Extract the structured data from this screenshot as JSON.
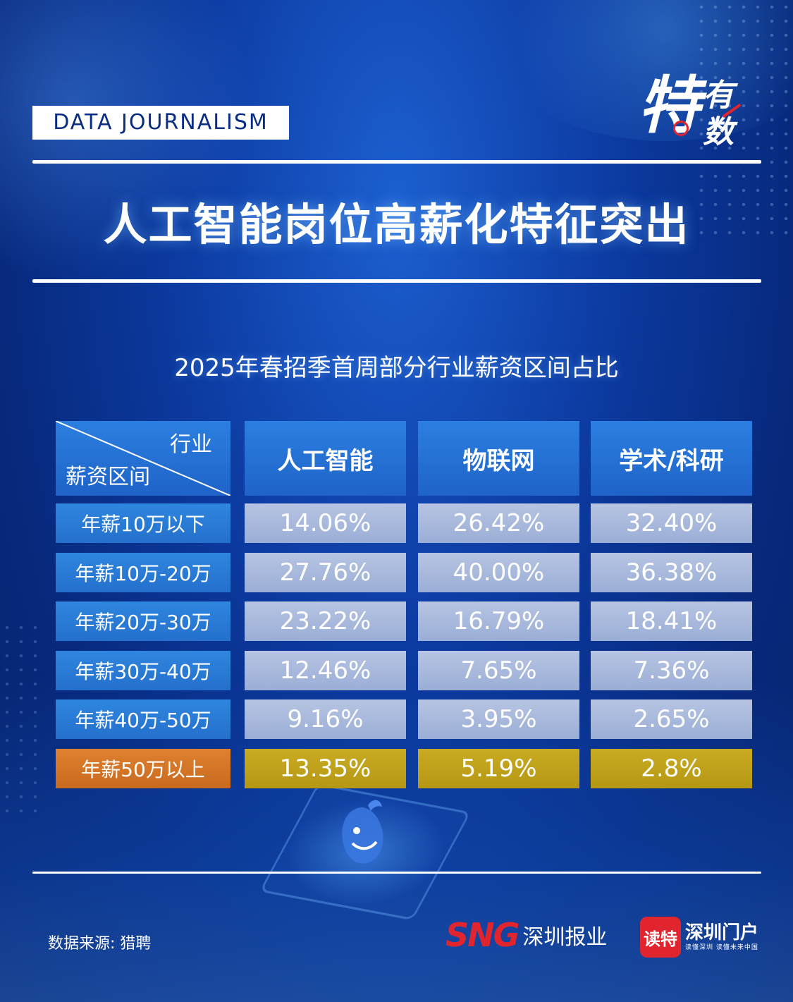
{
  "tag": "DATA  JOURNALISM",
  "brand": {
    "big": "特",
    "small_top": "有",
    "small_bottom": "数"
  },
  "title": "人工智能岗位高薪化特征突出",
  "chart_data": {
    "type": "table",
    "title": "2025年春招季首周部分行业薪资区间占比",
    "corner_top": "行业",
    "corner_bottom": "薪资区间",
    "columns": [
      "人工智能",
      "物联网",
      "学术/科研"
    ],
    "rows": [
      {
        "label": "年薪10万以下",
        "values": [
          "14.06%",
          "26.42%",
          "32.40%"
        ],
        "highlight": false
      },
      {
        "label": "年薪10万-20万",
        "values": [
          "27.76%",
          "40.00%",
          "36.38%"
        ],
        "highlight": false
      },
      {
        "label": "年薪20万-30万",
        "values": [
          "23.22%",
          "16.79%",
          "18.41%"
        ],
        "highlight": false
      },
      {
        "label": "年薪30万-40万",
        "values": [
          "12.46%",
          "7.65%",
          "7.36%"
        ],
        "highlight": false
      },
      {
        "label": "年薪40万-50万",
        "values": [
          "9.16%",
          "3.95%",
          "2.65%"
        ],
        "highlight": false
      },
      {
        "label": "年薪50万以上",
        "values": [
          "13.35%",
          "5.19%",
          "2.8%"
        ],
        "highlight": true
      }
    ],
    "colors": {
      "header": "#2573d6",
      "row_label": "#2a7bd6",
      "row_label_highlight": "#d8772a",
      "value": "#a9b9dc",
      "value_highlight": "#bfa11b"
    }
  },
  "footer": {
    "source": "数据来源: 猎聘",
    "sng_logo": "SNG",
    "sng_text": "深圳报业",
    "dt_box": "读特",
    "dt_name": "深圳门户",
    "dt_slogan": "读懂深圳  读懂未来中国"
  }
}
